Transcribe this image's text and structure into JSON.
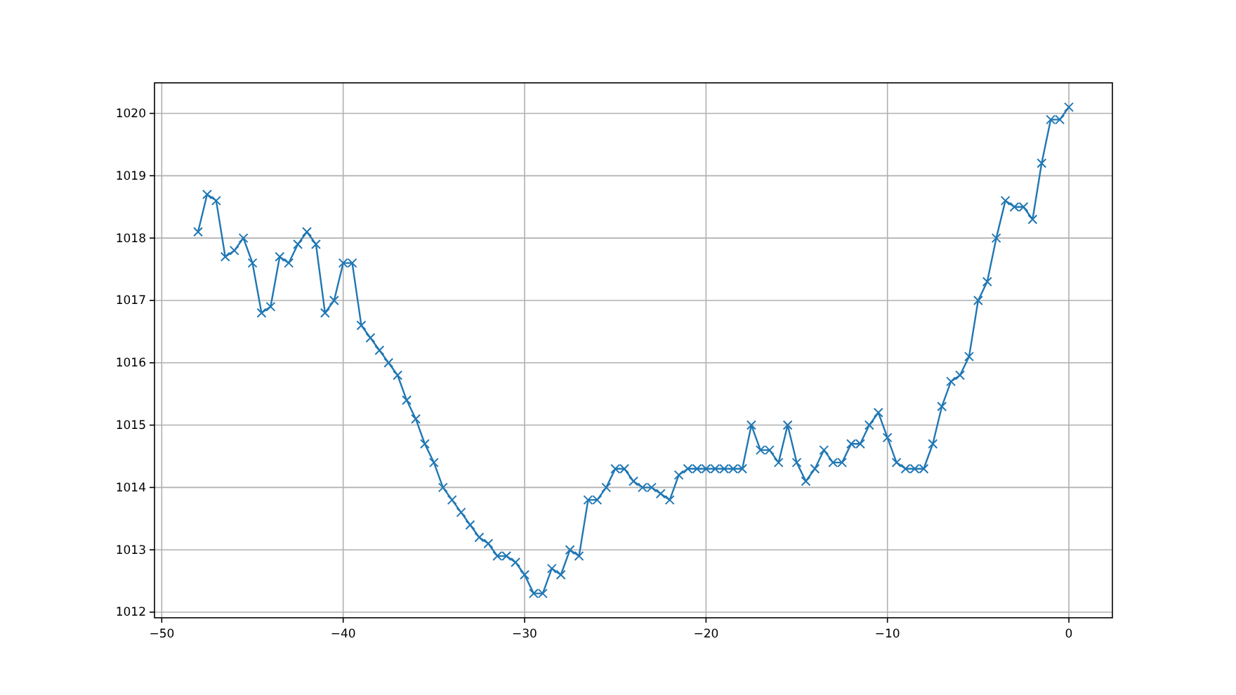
{
  "chart_data": {
    "type": "line",
    "x": [
      -48,
      -47.5,
      -47,
      -46.5,
      -46,
      -45.5,
      -45,
      -44.5,
      -44,
      -43.5,
      -43,
      -42.5,
      -42,
      -41.5,
      -41,
      -40.5,
      -40,
      -39.5,
      -39,
      -38.5,
      -38,
      -37.5,
      -37,
      -36.5,
      -36,
      -35.5,
      -35,
      -34.5,
      -34,
      -33.5,
      -33,
      -32.5,
      -32,
      -31.5,
      -31,
      -30.5,
      -30,
      -29.5,
      -29,
      -28.5,
      -28,
      -27.5,
      -27,
      -26.5,
      -26,
      -25.5,
      -25,
      -24.5,
      -24,
      -23.5,
      -23,
      -22.5,
      -22,
      -21.5,
      -21,
      -20.5,
      -20,
      -19.5,
      -19,
      -18.5,
      -18,
      -17.5,
      -17,
      -16.5,
      -16,
      -15.5,
      -15,
      -14.5,
      -14,
      -13.5,
      -13,
      -12.5,
      -12,
      -11.5,
      -11,
      -10.5,
      -10,
      -9.5,
      -9,
      -8.5,
      -8,
      -7.5,
      -7,
      -6.5,
      -6,
      -5.5,
      -5,
      -4.5,
      -4,
      -3.5,
      -3,
      -2.5,
      -2,
      -1.5,
      -1,
      -0.5,
      0
    ],
    "series": [
      {
        "color": "#1f77b4",
        "values": [
          1018.1,
          1018.7,
          1018.6,
          1017.7,
          1017.8,
          1018.0,
          1017.6,
          1016.8,
          1016.9,
          1017.7,
          1017.6,
          1017.9,
          1018.1,
          1017.9,
          1016.8,
          1017.0,
          1017.6,
          1017.6,
          1016.6,
          1016.4,
          1016.2,
          1016.0,
          1015.8,
          1015.4,
          1015.1,
          1014.7,
          1014.4,
          1014.0,
          1013.8,
          1013.6,
          1013.4,
          1013.2,
          1013.1,
          1012.9,
          1012.9,
          1012.8,
          1012.6,
          1012.3,
          1012.3,
          1012.7,
          1012.6,
          1013.0,
          1012.9,
          1013.8,
          1013.8,
          1014.0,
          1014.3,
          1014.3,
          1014.1,
          1014.0,
          1014.0,
          1013.9,
          1013.8,
          1014.2,
          1014.3,
          1014.3,
          1014.3,
          1014.3,
          1014.3,
          1014.3,
          1014.3,
          1015.0,
          1014.6,
          1014.6,
          1014.4,
          1015.0,
          1014.4,
          1014.1,
          1014.3,
          1014.6,
          1014.4,
          1014.4,
          1014.7,
          1014.7,
          1015.0,
          1015.2,
          1014.8,
          1014.4,
          1014.3,
          1014.3,
          1014.3,
          1014.7,
          1015.3,
          1015.7,
          1015.8,
          1016.1,
          1017.0,
          1017.3,
          1018.0,
          1018.6,
          1018.5,
          1018.5,
          1018.3,
          1019.2,
          1019.9,
          1019.9,
          1020.1
        ]
      }
    ],
    "xlim": [
      -50.4,
      2.4
    ],
    "xticks": [
      -50,
      -40,
      -30,
      -20,
      -10,
      0
    ],
    "ylim": [
      1011.91,
      1020.49
    ],
    "yticks": [
      1012,
      1013,
      1014,
      1015,
      1016,
      1017,
      1018,
      1019,
      1020
    ],
    "grid": true,
    "marker": "cross",
    "line_style": "solid"
  }
}
